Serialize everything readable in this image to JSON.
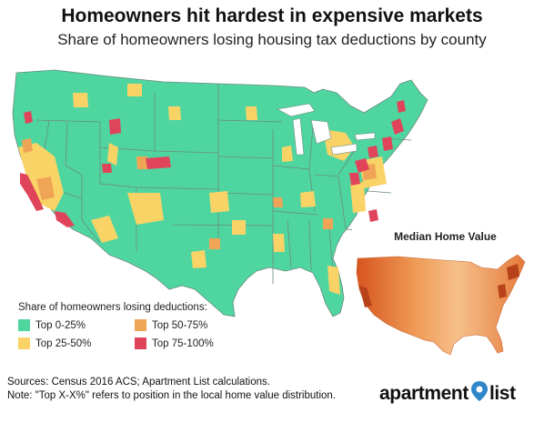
{
  "header": {
    "title": "Homeowners hit hardest in expensive markets",
    "subtitle": "Share of homeowners losing housing tax deductions by county"
  },
  "legend": {
    "title": "Share of homeowners losing deductions:",
    "items": [
      {
        "label": "Top 0-25%",
        "color": "#4fd6a0"
      },
      {
        "label": "Top 50-75%",
        "color": "#f0a556"
      },
      {
        "label": "Top 25-50%",
        "color": "#fad367"
      },
      {
        "label": "Top 75-100%",
        "color": "#e0445a"
      }
    ]
  },
  "inset": {
    "title": "Median Home Value",
    "color_low": "#fbe3c2",
    "color_high": "#d7551f"
  },
  "footer": {
    "sources": "Sources: Census 2016 ACS; Apartment List calculations.",
    "note": "Note: \"Top X-X%\" refers to position in the local home value distribution."
  },
  "brand": {
    "name_part1": "apartment",
    "name_part2": "list",
    "pin_color": "#2f86c9"
  },
  "colors": {
    "land": "#4fd6a0",
    "border": "#6b8a7c",
    "mid": "#fad367",
    "high": "#f0a556",
    "top": "#e0445a"
  }
}
